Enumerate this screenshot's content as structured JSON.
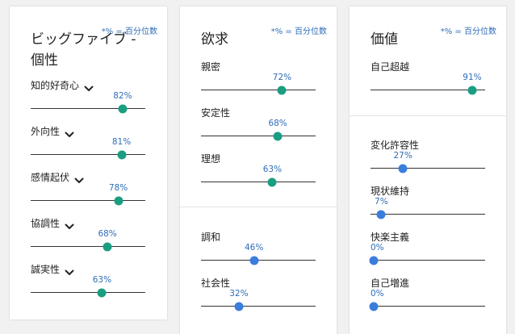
{
  "colors": {
    "accent_text": "#2e6db6",
    "positive_dot": "#1a9e82",
    "neutral_dot": "#3b7ddd"
  },
  "percentile_note": "*% = 百分位数",
  "big_five": {
    "title_line1": "ビッグファイブ -",
    "title_line2": "個性",
    "traits": [
      {
        "label": "知的好奇心",
        "value": 82,
        "value_label": "82%"
      },
      {
        "label": "外向性",
        "value": 81,
        "value_label": "81%"
      },
      {
        "label": "感情起伏",
        "value": 78,
        "value_label": "78%"
      },
      {
        "label": "協調性",
        "value": 68,
        "value_label": "68%"
      },
      {
        "label": "誠実性",
        "value": 63,
        "value_label": "63%"
      }
    ]
  },
  "needs": {
    "title": "欲求",
    "top": [
      {
        "label": "親密",
        "value": 72,
        "value_label": "72%"
      },
      {
        "label": "安定性",
        "value": 68,
        "value_label": "68%"
      },
      {
        "label": "理想",
        "value": 63,
        "value_label": "63%"
      }
    ],
    "bottom": [
      {
        "label": "調和",
        "value": 46,
        "value_label": "46%"
      },
      {
        "label": "社会性",
        "value": 32,
        "value_label": "32%"
      }
    ]
  },
  "values": {
    "title": "価値",
    "top": [
      {
        "label": "自己超越",
        "value": 91,
        "value_label": "91%"
      }
    ],
    "bottom": [
      {
        "label": "変化許容性",
        "value": 27,
        "value_label": "27%"
      },
      {
        "label": "現状維持",
        "value": 7,
        "value_label": "7%"
      },
      {
        "label": "快楽主義",
        "value": 0,
        "value_label": "0%"
      },
      {
        "label": "自己増進",
        "value": 0,
        "value_label": "0%"
      }
    ]
  }
}
